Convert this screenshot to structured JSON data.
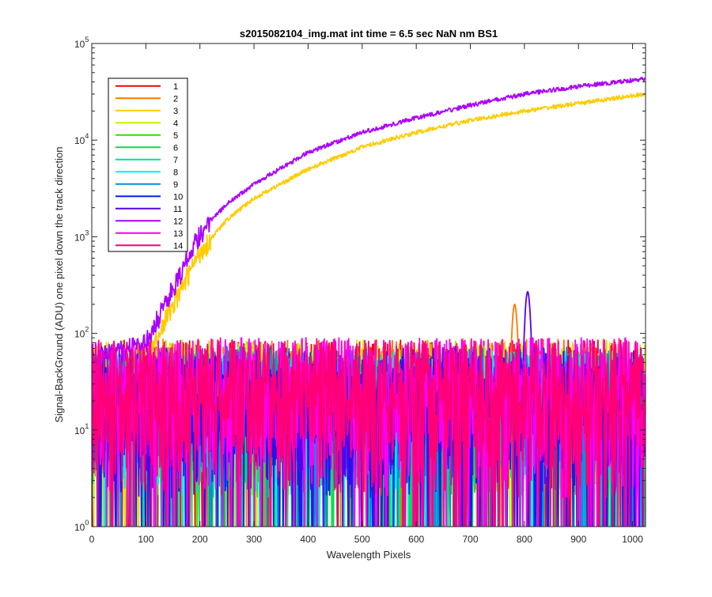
{
  "chart_data": {
    "type": "line",
    "title": "s2015082104_img.mat int time = 6.5 sec  NaN nm BS1",
    "xlabel": "Wavelength Pixels",
    "ylabel": "Signal-BackGround (ADU) one pixel down the track direction",
    "xlim": [
      0,
      1024
    ],
    "ylim": [
      1,
      100000
    ],
    "yscale": "log",
    "grid": false,
    "legend_position": "top-left",
    "x_ticks": [
      "0",
      "100",
      "200",
      "300",
      "400",
      "500",
      "600",
      "700",
      "800",
      "900",
      "1000"
    ],
    "y_ticks": [
      {
        "base": "10",
        "exp": "0"
      },
      {
        "base": "10",
        "exp": "1"
      },
      {
        "base": "10",
        "exp": "2"
      },
      {
        "base": "10",
        "exp": "3"
      },
      {
        "base": "10",
        "exp": "4"
      },
      {
        "base": "10",
        "exp": "5"
      }
    ],
    "series": [
      {
        "name": "1",
        "color": "#ff0000",
        "noise_mean": 30,
        "noise_max": 85
      },
      {
        "name": "2",
        "color": "#ff7700",
        "noise_mean": 30,
        "noise_max": 90,
        "peak": {
          "x": 782,
          "y": 200
        }
      },
      {
        "name": "3",
        "color": "#ffcc00",
        "growth": [
          [
            0,
            40
          ],
          [
            100,
            55
          ],
          [
            150,
            200
          ],
          [
            200,
            700
          ],
          [
            250,
            1500
          ],
          [
            300,
            2500
          ],
          [
            400,
            5000
          ],
          [
            500,
            8500
          ],
          [
            600,
            12000
          ],
          [
            700,
            16000
          ],
          [
            800,
            20000
          ],
          [
            900,
            24000
          ],
          [
            1024,
            30000
          ]
        ]
      },
      {
        "name": "4",
        "color": "#c8f000",
        "noise_mean": 30,
        "noise_max": 85
      },
      {
        "name": "5",
        "color": "#33dd00",
        "noise_mean": 22,
        "noise_max": 80
      },
      {
        "name": "6",
        "color": "#00e050",
        "noise_mean": 22,
        "noise_max": 80
      },
      {
        "name": "7",
        "color": "#00e0a0",
        "noise_mean": 22,
        "noise_max": 80
      },
      {
        "name": "8",
        "color": "#00f0f0",
        "noise_mean": 22,
        "noise_max": 80
      },
      {
        "name": "9",
        "color": "#0090e0",
        "noise_mean": 25,
        "noise_max": 85
      },
      {
        "name": "10",
        "color": "#0022ee",
        "noise_mean": 20,
        "noise_max": 80
      },
      {
        "name": "11",
        "color": "#5500ee",
        "noise_mean": 25,
        "noise_max": 85,
        "peak": {
          "x": 806,
          "y": 270
        }
      },
      {
        "name": "12",
        "color": "#aa00ff",
        "growth": [
          [
            0,
            55
          ],
          [
            100,
            80
          ],
          [
            150,
            300
          ],
          [
            200,
            1100
          ],
          [
            250,
            2200
          ],
          [
            300,
            3500
          ],
          [
            400,
            7500
          ],
          [
            500,
            12000
          ],
          [
            600,
            17000
          ],
          [
            700,
            23000
          ],
          [
            800,
            30000
          ],
          [
            900,
            36000
          ],
          [
            1024,
            43000
          ]
        ]
      },
      {
        "name": "13",
        "color": "#ff00ee",
        "noise_mean": 35,
        "noise_max": 90
      },
      {
        "name": "14",
        "color": "#ff0077",
        "noise_mean": 30,
        "noise_max": 85
      }
    ]
  }
}
